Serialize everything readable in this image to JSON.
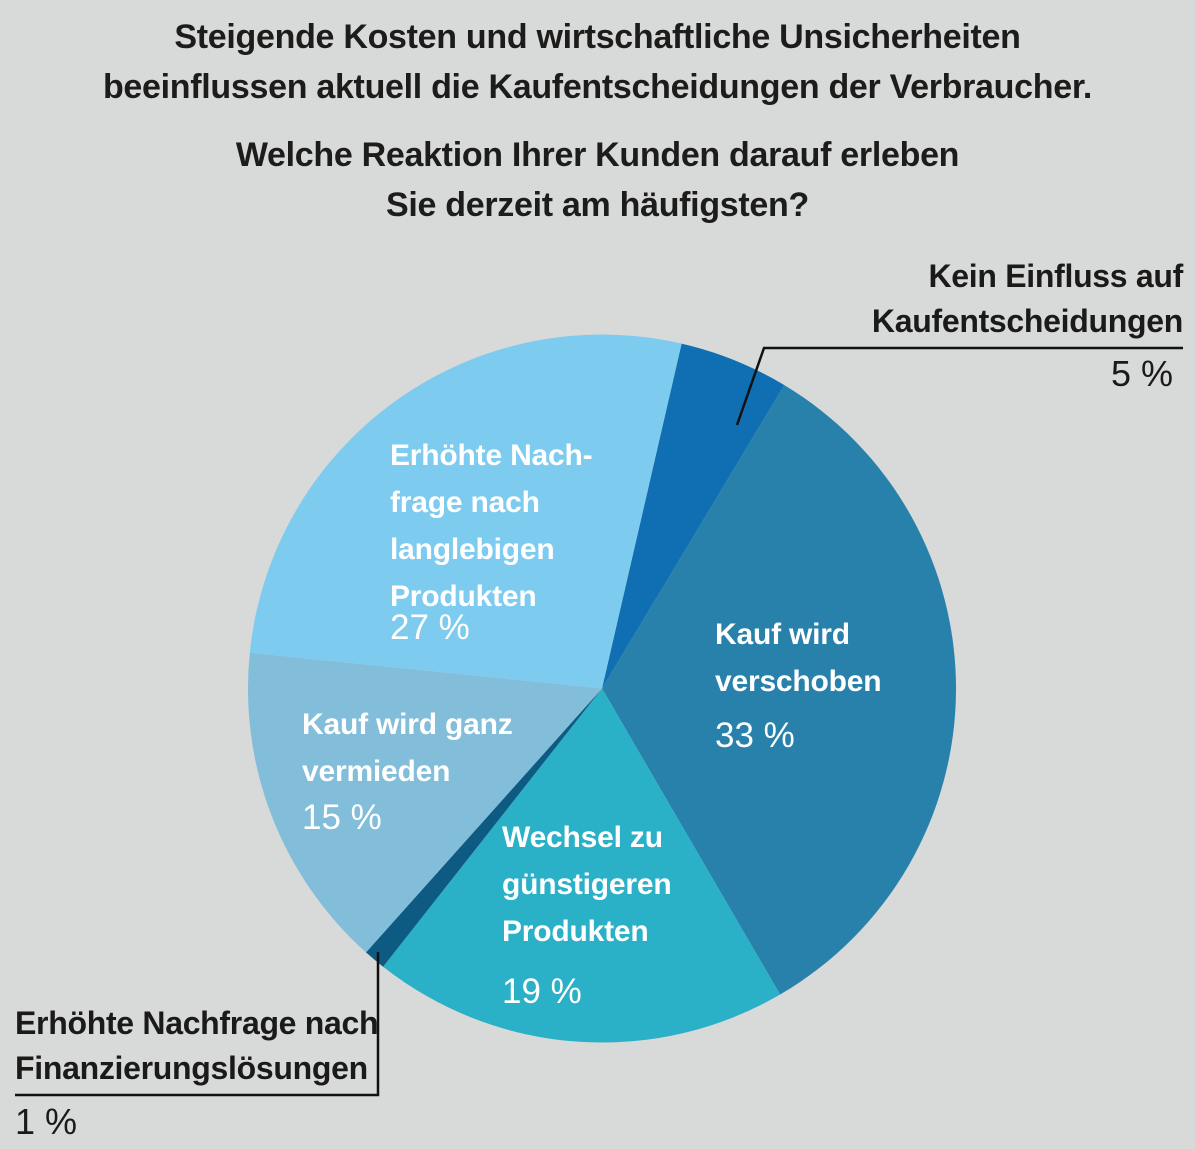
{
  "title": {
    "line1": "Steigende Kosten und wirtschaftliche Unsicherheiten",
    "line2": "beeinflussen aktuell die Kaufentscheidungen der Verbraucher.",
    "line3": "Welche Reaktion Ihrer Kunden darauf erleben",
    "line4": "Sie derzeit am häufigsten?"
  },
  "colors": {
    "background": "#d8d9d9",
    "title_text": "#1c1c1a",
    "inside_label_text": "#ffffff",
    "callout_text": "#1a1a18",
    "leader_line": "#111111"
  },
  "chart_data": {
    "type": "pie",
    "title": "Welche Reaktion Ihrer Kunden darauf erleben Sie derzeit am häufigsten?",
    "subtitle": "Steigende Kosten und wirtschaftliche Unsicherheiten beeinflussen aktuell die Kaufentscheidungen der Verbraucher.",
    "unit": "%",
    "direction": "clockwise",
    "rotation_deg": 13,
    "legend_position": "none",
    "segments": [
      {
        "name": "kein-einfluss",
        "label": "Kein Einfluss auf Kaufentscheidungen",
        "label_lines": [
          "Kein Einfluss auf",
          "Kaufentscheidungen"
        ],
        "value": 5,
        "pct_label": "5 %",
        "color": "#0f6fb2",
        "label_style": "callout-top-right"
      },
      {
        "name": "kauf-verschoben",
        "label": "Kauf wird verschoben",
        "label_lines": [
          "Kauf wird",
          "verschoben"
        ],
        "value": 33,
        "pct_label": "33 %",
        "color": "#2781aa",
        "label_style": "inside"
      },
      {
        "name": "wechsel-guenstigere-produkte",
        "label": "Wechsel zu günstigeren Produkten",
        "label_lines": [
          "Wechsel zu",
          "günstigeren",
          "Produkten"
        ],
        "value": 19,
        "pct_label": "19 %",
        "color": "#2bb1c7",
        "label_style": "inside"
      },
      {
        "name": "finanzierungsloesungen",
        "label": "Erhöhte Nachfrage nach Finanzierungslösungen",
        "label_lines": [
          "Erhöhte Nachfrage nach",
          "Finanzierungslösungen"
        ],
        "value": 1,
        "pct_label": "1 %",
        "color": "#0d5a82",
        "label_style": "callout-bottom-left"
      },
      {
        "name": "kauf-vermieden",
        "label": "Kauf wird ganz vermieden",
        "label_lines": [
          "Kauf wird ganz",
          "vermieden"
        ],
        "value": 15,
        "pct_label": "15 %",
        "color": "#82bdda",
        "label_style": "inside"
      },
      {
        "name": "langlebige-produkte",
        "label": "Erhöhte Nachfrage nach langlebigen Produkten",
        "label_lines": [
          "Erhöhte Nach-",
          "frage nach",
          "langlebigen",
          "Produkten"
        ],
        "value": 27,
        "pct_label": "27 %",
        "color": "#7ecbf0",
        "label_style": "inside"
      }
    ]
  }
}
